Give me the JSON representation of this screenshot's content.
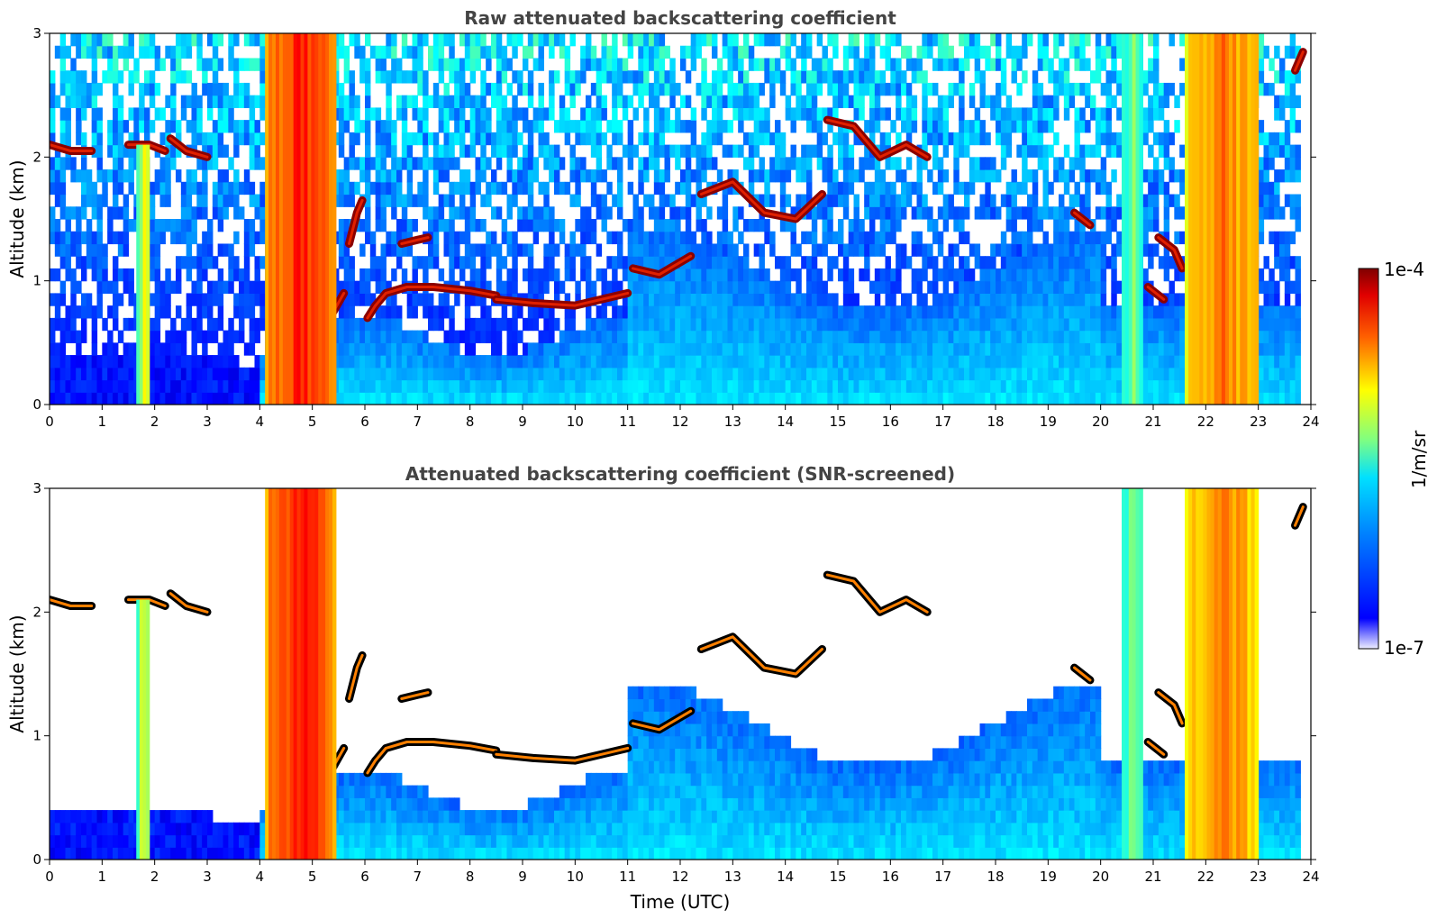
{
  "chart_data": [
    {
      "type": "heatmap",
      "title": "Raw attenuated backscattering coefficient",
      "xlabel": "",
      "ylabel": "Altitude (km)",
      "xlim": [
        0,
        24
      ],
      "ylim": [
        0,
        3
      ],
      "xticks": [
        "0",
        "1",
        "2",
        "3",
        "4",
        "5",
        "6",
        "7",
        "8",
        "9",
        "10",
        "11",
        "12",
        "13",
        "14",
        "15",
        "16",
        "17",
        "18",
        "19",
        "20",
        "21",
        "22",
        "23",
        "24"
      ],
      "yticks": [
        "0",
        "1",
        "2",
        "3"
      ],
      "screened": false,
      "features": [
        {
          "kind": "cloud_layer",
          "points": [
            [
              0.0,
              2.1
            ],
            [
              0.4,
              2.05
            ],
            [
              0.8,
              2.05
            ]
          ]
        },
        {
          "kind": "cloud_layer",
          "points": [
            [
              1.5,
              2.1
            ],
            [
              1.9,
              2.1
            ],
            [
              2.2,
              2.05
            ]
          ]
        },
        {
          "kind": "cloud_layer",
          "points": [
            [
              2.3,
              2.15
            ],
            [
              2.6,
              2.05
            ],
            [
              3.0,
              2.0
            ]
          ]
        },
        {
          "kind": "cloud_layer",
          "points": [
            [
              4.5,
              0.85
            ],
            [
              4.8,
              0.78
            ],
            [
              5.1,
              0.8
            ],
            [
              5.4,
              0.75
            ],
            [
              5.6,
              0.9
            ]
          ]
        },
        {
          "kind": "cloud_layer",
          "points": [
            [
              5.7,
              1.3
            ],
            [
              5.85,
              1.55
            ],
            [
              5.95,
              1.65
            ]
          ]
        },
        {
          "kind": "cloud_layer",
          "points": [
            [
              6.05,
              0.7
            ],
            [
              6.2,
              0.8
            ],
            [
              6.4,
              0.9
            ],
            [
              6.8,
              0.95
            ],
            [
              7.3,
              0.95
            ],
            [
              8.0,
              0.92
            ],
            [
              8.5,
              0.88
            ]
          ]
        },
        {
          "kind": "cloud_layer",
          "points": [
            [
              6.7,
              1.3
            ],
            [
              7.0,
              1.33
            ],
            [
              7.2,
              1.35
            ]
          ]
        },
        {
          "kind": "cloud_layer",
          "points": [
            [
              8.5,
              0.85
            ],
            [
              9.2,
              0.82
            ],
            [
              10.0,
              0.8
            ],
            [
              10.5,
              0.85
            ],
            [
              11.0,
              0.9
            ]
          ]
        },
        {
          "kind": "cloud_layer",
          "points": [
            [
              11.1,
              1.1
            ],
            [
              11.6,
              1.05
            ],
            [
              12.2,
              1.2
            ]
          ]
        },
        {
          "kind": "cloud_layer",
          "points": [
            [
              12.4,
              1.7
            ],
            [
              13.0,
              1.8
            ],
            [
              13.6,
              1.55
            ],
            [
              14.2,
              1.5
            ],
            [
              14.7,
              1.7
            ]
          ]
        },
        {
          "kind": "cloud_layer",
          "points": [
            [
              14.8,
              2.3
            ],
            [
              15.3,
              2.25
            ],
            [
              15.8,
              2.0
            ],
            [
              16.3,
              2.1
            ],
            [
              16.7,
              2.0
            ]
          ]
        },
        {
          "kind": "cloud_layer",
          "points": [
            [
              19.5,
              1.55
            ],
            [
              19.8,
              1.45
            ]
          ]
        },
        {
          "kind": "cloud_layer",
          "points": [
            [
              20.9,
              0.95
            ],
            [
              21.2,
              0.85
            ]
          ]
        },
        {
          "kind": "cloud_layer",
          "points": [
            [
              21.1,
              1.35
            ],
            [
              21.4,
              1.25
            ],
            [
              21.55,
              1.1
            ]
          ]
        },
        {
          "kind": "cloud_layer",
          "points": [
            [
              23.7,
              2.7
            ],
            [
              23.85,
              2.85
            ]
          ]
        },
        {
          "kind": "precip_column",
          "x0": 1.65,
          "x1": 1.9,
          "top": 2.1,
          "peak": 0.55
        },
        {
          "kind": "precip_column",
          "x0": 4.1,
          "x1": 5.45,
          "top": 3.0,
          "peak": 0.8
        },
        {
          "kind": "precip_column",
          "x0": 20.4,
          "x1": 20.8,
          "top": 3.0,
          "peak": 0.45
        },
        {
          "kind": "precip_column",
          "x0": 21.6,
          "x1": 23.0,
          "top": 3.0,
          "peak": 0.72
        },
        {
          "kind": "boundary_layer",
          "note": "blue aerosol layer, 0-0.5 km early, up to ~1.5 km after 11 UTC"
        }
      ]
    },
    {
      "type": "heatmap",
      "title": "Attenuated backscattering coefficient (SNR-screened)",
      "xlabel": "Time (UTC)",
      "ylabel": "Altitude (km)",
      "xlim": [
        0,
        24
      ],
      "ylim": [
        0,
        3
      ],
      "xticks": [
        "0",
        "1",
        "2",
        "3",
        "4",
        "5",
        "6",
        "7",
        "8",
        "9",
        "10",
        "11",
        "12",
        "13",
        "14",
        "15",
        "16",
        "17",
        "18",
        "19",
        "20",
        "21",
        "22",
        "23",
        "24"
      ],
      "yticks": [
        "0",
        "1",
        "2",
        "3"
      ],
      "screened": true
    }
  ],
  "colorbar": {
    "label": "1/m/sr",
    "max_label": "1e-4",
    "min_label": "1e-7",
    "colormap": "jet",
    "scale": "log"
  }
}
